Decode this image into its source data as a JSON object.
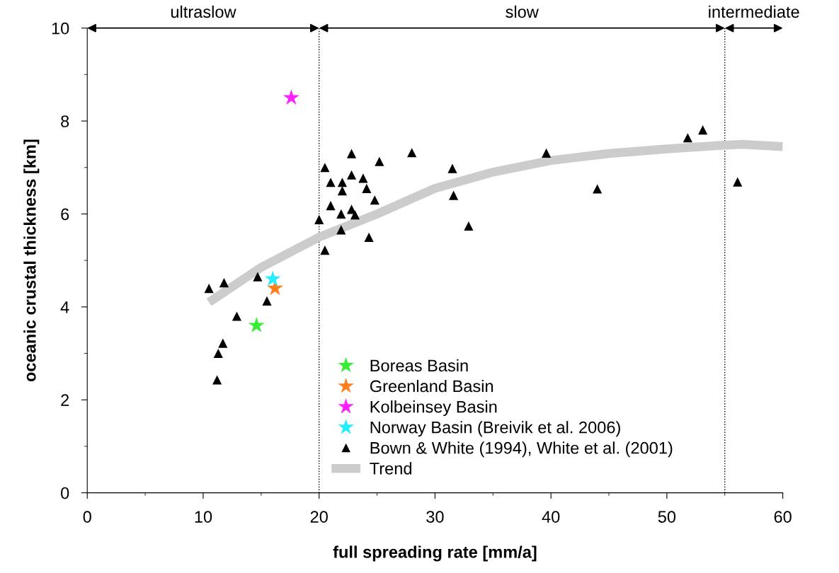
{
  "chart_data": {
    "type": "scatter",
    "xlabel": "full spreading rate [mm/a]",
    "ylabel": "oceanic crustal thickness [km]",
    "xlim": [
      0,
      60
    ],
    "ylim": [
      0,
      10
    ],
    "xticks": [
      0,
      10,
      20,
      30,
      40,
      50,
      60
    ],
    "yticks": [
      0,
      2,
      4,
      6,
      8,
      10
    ],
    "legend": "bottom",
    "ref_lines": [
      {
        "axis": "x",
        "value": 20,
        "line_style": "dotted",
        "color": "#000000"
      },
      {
        "axis": "x",
        "value": 55,
        "line_style": "dotted",
        "color": "#000000"
      }
    ],
    "annotations": [
      "ultraslow",
      "slow",
      "intermediate"
    ],
    "series": [
      {
        "name": "Boreas Basin",
        "color": "#33ee33",
        "marker": "star",
        "x": [
          14.6
        ],
        "values": [
          3.6
        ]
      },
      {
        "name": "Greenland Basin",
        "color": "#ff7f1e",
        "marker": "star",
        "x": [
          16.2
        ],
        "values": [
          4.4
        ]
      },
      {
        "name": "Kolbeinsey Basin",
        "color": "#ff22ff",
        "marker": "star",
        "x": [
          17.6
        ],
        "values": [
          8.5
        ]
      },
      {
        "name": "Norway Basin (Breivik et al. 2006)",
        "color": "#22eeff",
        "marker": "star",
        "x": [
          16.0
        ],
        "values": [
          4.6
        ]
      },
      {
        "name": "Bown & White (1994), White et al. (2001)",
        "color": "#000000",
        "marker": "triangle",
        "x": [
          10.5,
          11.2,
          11.3,
          11.7,
          11.8,
          12.9,
          14.7,
          15.5,
          20.0,
          20.5,
          20.5,
          21.0,
          21.0,
          21.9,
          21.9,
          22.0,
          22.0,
          22.8,
          22.8,
          22.8,
          23.1,
          23.8,
          24.1,
          24.3,
          24.8,
          25.2,
          28.0,
          31.5,
          31.6,
          32.9,
          39.6,
          44.0,
          51.8,
          53.1,
          56.1
        ],
        "values": [
          4.4,
          2.43,
          3.0,
          3.22,
          4.52,
          3.8,
          4.65,
          4.13,
          5.88,
          5.22,
          7.0,
          6.18,
          6.68,
          5.66,
          6.0,
          6.5,
          6.68,
          6.1,
          7.3,
          6.84,
          5.98,
          6.77,
          6.55,
          5.5,
          6.3,
          7.13,
          7.32,
          6.98,
          6.4,
          5.74,
          7.31,
          6.54,
          7.64,
          7.81,
          6.69
        ]
      },
      {
        "name": "Trend",
        "type": "line",
        "color": "#cccccc",
        "marker": "none",
        "x": [
          10.5,
          15,
          20,
          25,
          30,
          35,
          40,
          45,
          50,
          55,
          56.5,
          60
        ],
        "values": [
          4.1,
          4.85,
          5.5,
          6.0,
          6.55,
          6.9,
          7.15,
          7.3,
          7.4,
          7.48,
          7.5,
          7.45
        ]
      }
    ]
  }
}
